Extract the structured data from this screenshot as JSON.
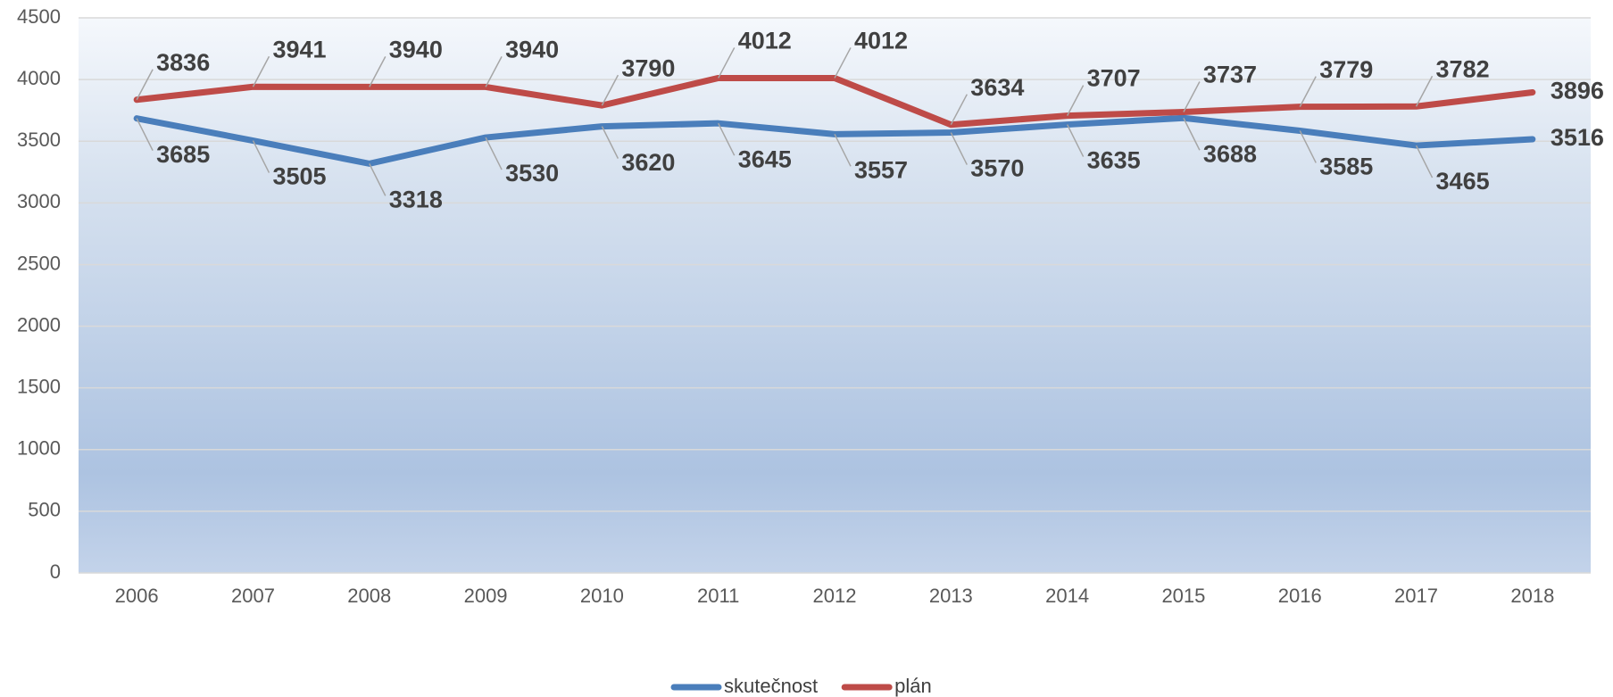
{
  "chart_data": {
    "type": "line",
    "categories": [
      "2006",
      "2007",
      "2008",
      "2009",
      "2010",
      "2011",
      "2012",
      "2013",
      "2014",
      "2015",
      "2016",
      "2017",
      "2018"
    ],
    "series": [
      {
        "name": "skutečnost",
        "color": "#4a7ebb",
        "values": [
          3685,
          3505,
          3318,
          3530,
          3620,
          3645,
          3557,
          3570,
          3635,
          3688,
          3585,
          3465,
          3516
        ]
      },
      {
        "name": "plán",
        "color": "#be4b48",
        "values": [
          3836,
          3941,
          3940,
          3940,
          3790,
          4012,
          4012,
          3634,
          3707,
          3737,
          3779,
          3782,
          3896
        ]
      }
    ],
    "ylim": [
      0,
      4500
    ],
    "yticks": [
      0,
      500,
      1000,
      1500,
      2000,
      2500,
      3000,
      3500,
      4000,
      4500
    ],
    "grid": true,
    "legend": "bottom"
  }
}
